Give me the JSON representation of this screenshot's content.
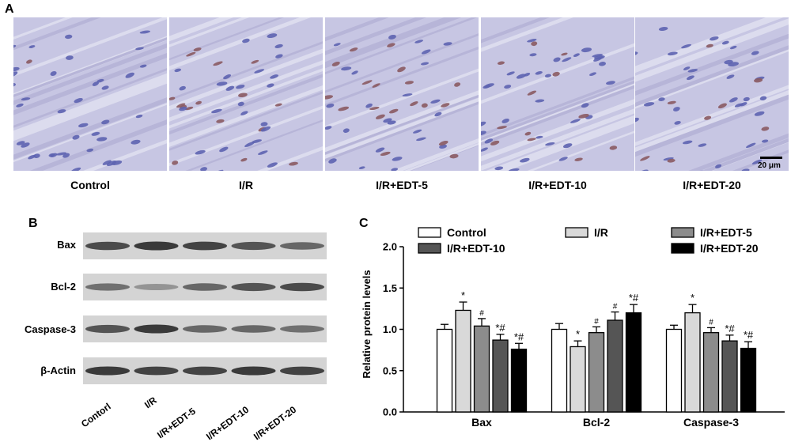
{
  "panels": {
    "a": "A",
    "b": "B",
    "c": "C"
  },
  "micrographs": {
    "labels": [
      "Control",
      "I/R",
      "I/R+EDT-5",
      "I/R+EDT-10",
      "I/R+EDT-20"
    ],
    "scale_bar": "20 μm"
  },
  "blot": {
    "rows": [
      "Bax",
      "Bcl-2",
      "Caspase-3",
      "β-Actin"
    ],
    "lanes": [
      "Contorl",
      "I/R",
      "I/R+EDT-5",
      "I/R+EDT-10",
      "I/R+EDT-20"
    ]
  },
  "chart_data": {
    "type": "bar",
    "ylabel": "Relative protein levels",
    "xlabel": "",
    "ylim": [
      0,
      2.0
    ],
    "yticks": [
      0.0,
      0.5,
      1.0,
      1.5,
      2.0
    ],
    "categories": [
      "Bax",
      "Bcl-2",
      "Caspase-3"
    ],
    "legend": "top",
    "series": [
      {
        "name": "Control",
        "color": "#ffffff",
        "values": [
          1.0,
          1.0,
          1.0
        ],
        "errors": [
          0.06,
          0.07,
          0.05
        ],
        "annotations": [
          "",
          "",
          ""
        ]
      },
      {
        "name": "I/R",
        "color": "#d9d9d9",
        "values": [
          1.23,
          0.79,
          1.2
        ],
        "errors": [
          0.1,
          0.07,
          0.1
        ],
        "annotations": [
          "*",
          "*",
          "*"
        ]
      },
      {
        "name": "I/R+EDT-5",
        "color": "#8c8c8c",
        "values": [
          1.04,
          0.96,
          0.96
        ],
        "errors": [
          0.09,
          0.07,
          0.06
        ],
        "annotations": [
          "#",
          "#",
          "#"
        ]
      },
      {
        "name": "I/R+EDT-10",
        "color": "#555555",
        "values": [
          0.87,
          1.11,
          0.86
        ],
        "errors": [
          0.07,
          0.1,
          0.07
        ],
        "annotations": [
          "*#",
          "#",
          "*#"
        ]
      },
      {
        "name": "I/R+EDT-20",
        "color": "#000000",
        "values": [
          0.76,
          1.2,
          0.77
        ],
        "errors": [
          0.07,
          0.1,
          0.08
        ],
        "annotations": [
          "*#",
          "*#",
          "*#"
        ]
      }
    ]
  }
}
